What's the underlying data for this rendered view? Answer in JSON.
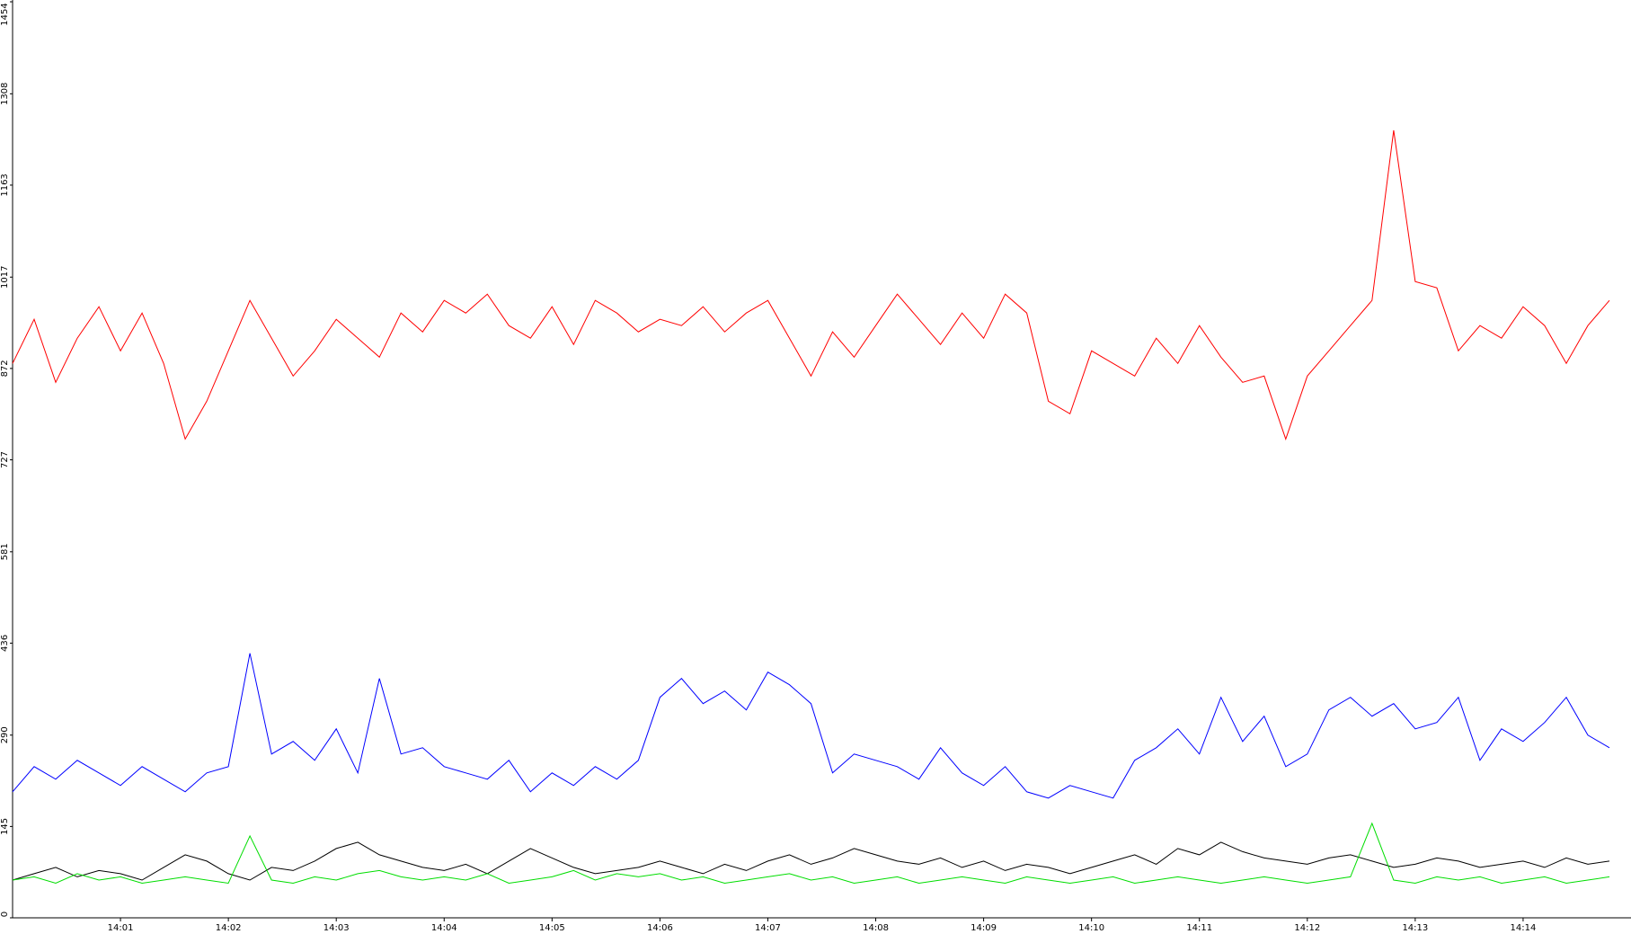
{
  "chart_data": {
    "type": "line",
    "x": [
      0,
      0.2,
      0.4,
      0.6,
      0.8,
      1,
      1.2,
      1.4,
      1.6,
      1.8,
      2,
      2.2,
      2.4,
      2.6,
      2.8,
      3,
      3.2,
      3.4,
      3.6,
      3.8,
      4,
      4.2,
      4.4,
      4.6,
      4.8,
      5,
      5.2,
      5.4,
      5.6,
      5.8,
      6,
      6.2,
      6.4,
      6.6,
      6.8,
      7,
      7.2,
      7.4,
      7.6,
      7.8,
      8,
      8.2,
      8.4,
      8.6,
      8.8,
      9,
      9.2,
      9.4,
      9.6,
      9.8,
      10,
      10.2,
      10.4,
      10.6,
      10.8,
      11,
      11.2,
      11.4,
      11.6,
      11.8,
      12,
      12.2,
      12.4,
      12.6,
      12.8,
      13,
      13.2,
      13.4,
      13.6,
      13.8,
      14,
      14.2,
      14.4,
      14.6,
      14.8
    ],
    "xlim": [
      0,
      15
    ],
    "xticks": [
      {
        "value": 1,
        "label": "14:01"
      },
      {
        "value": 2,
        "label": "14:02"
      },
      {
        "value": 3,
        "label": "14:03"
      },
      {
        "value": 4,
        "label": "14:04"
      },
      {
        "value": 5,
        "label": "14:05"
      },
      {
        "value": 6,
        "label": "14:06"
      },
      {
        "value": 7,
        "label": "14:07"
      },
      {
        "value": 8,
        "label": "14:08"
      },
      {
        "value": 9,
        "label": "14:09"
      },
      {
        "value": 10,
        "label": "14:10"
      },
      {
        "value": 11,
        "label": "14:11"
      },
      {
        "value": 12,
        "label": "14:12"
      },
      {
        "value": 13,
        "label": "14:13"
      },
      {
        "value": 14,
        "label": "14:14"
      }
    ],
    "ylim": [
      0,
      1454
    ],
    "yticks": [
      0,
      145,
      290,
      436,
      581,
      727,
      872,
      1017,
      1163,
      1308,
      1454
    ],
    "grid": false,
    "series": [
      {
        "color": "#ff0000",
        "values": [
          880,
          950,
          850,
          920,
          970,
          900,
          960,
          880,
          760,
          820,
          900,
          980,
          920,
          860,
          900,
          950,
          920,
          890,
          960,
          930,
          980,
          960,
          990,
          940,
          920,
          970,
          910,
          980,
          960,
          930,
          950,
          940,
          970,
          930,
          960,
          980,
          920,
          860,
          930,
          890,
          940,
          990,
          950,
          910,
          960,
          920,
          990,
          960,
          820,
          800,
          900,
          880,
          860,
          920,
          880,
          940,
          890,
          850,
          860,
          760,
          860,
          900,
          940,
          980,
          1250,
          1010,
          1000,
          900,
          940,
          920,
          970,
          940,
          880,
          940,
          980
        ]
      },
      {
        "color": "#0000ff",
        "values": [
          200,
          240,
          220,
          250,
          230,
          210,
          240,
          220,
          200,
          230,
          240,
          420,
          260,
          280,
          250,
          300,
          230,
          380,
          260,
          270,
          240,
          230,
          220,
          250,
          200,
          230,
          210,
          240,
          220,
          250,
          350,
          380,
          340,
          360,
          330,
          390,
          370,
          340,
          230,
          260,
          250,
          240,
          220,
          270,
          230,
          210,
          240,
          200,
          190,
          210,
          200,
          190,
          250,
          270,
          300,
          260,
          350,
          280,
          320,
          240,
          260,
          330,
          350,
          320,
          340,
          300,
          310,
          350,
          250,
          300,
          280,
          310,
          350,
          290,
          270
        ]
      },
      {
        "color": "#000000",
        "values": [
          60,
          70,
          80,
          65,
          75,
          70,
          60,
          80,
          100,
          90,
          70,
          60,
          80,
          75,
          90,
          110,
          120,
          100,
          90,
          80,
          75,
          85,
          70,
          90,
          110,
          95,
          80,
          70,
          75,
          80,
          90,
          80,
          70,
          85,
          75,
          90,
          100,
          85,
          95,
          110,
          100,
          90,
          85,
          95,
          80,
          90,
          75,
          85,
          80,
          70,
          80,
          90,
          100,
          85,
          110,
          100,
          120,
          105,
          95,
          90,
          85,
          95,
          100,
          90,
          80,
          85,
          95,
          90,
          80,
          85,
          90,
          80,
          95,
          85,
          90
        ]
      },
      {
        "color": "#00dd00",
        "values": [
          60,
          65,
          55,
          70,
          60,
          65,
          55,
          60,
          65,
          60,
          55,
          130,
          60,
          55,
          65,
          60,
          70,
          75,
          65,
          60,
          65,
          60,
          70,
          55,
          60,
          65,
          75,
          60,
          70,
          65,
          70,
          60,
          65,
          55,
          60,
          65,
          70,
          60,
          65,
          55,
          60,
          65,
          55,
          60,
          65,
          60,
          55,
          65,
          60,
          55,
          60,
          65,
          55,
          60,
          65,
          60,
          55,
          60,
          65,
          60,
          55,
          60,
          65,
          150,
          60,
          55,
          65,
          60,
          65,
          55,
          60,
          65,
          55,
          60,
          65
        ]
      }
    ]
  }
}
